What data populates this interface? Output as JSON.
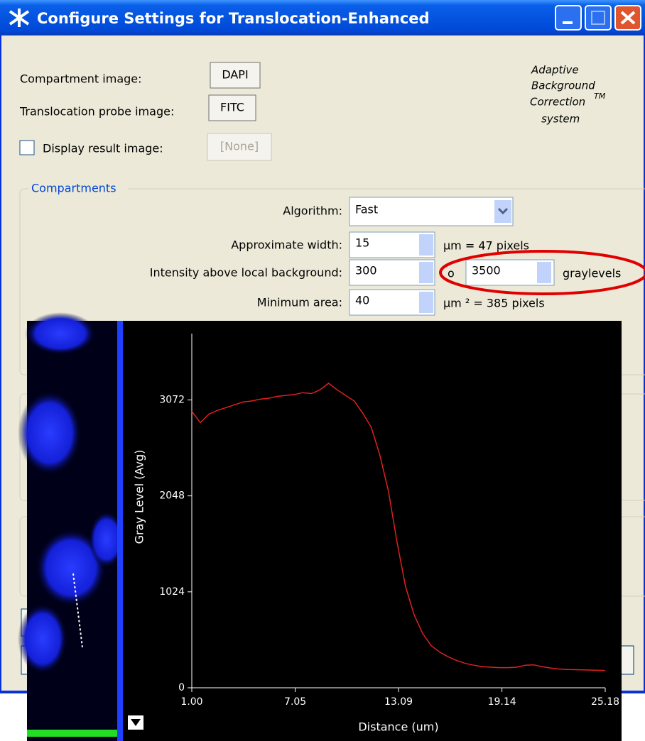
{
  "window": {
    "title": "Configure Settings for Translocation-Enhanced"
  },
  "images": {
    "compartment_label": "Compartment image:",
    "compartment_value": "DAPI",
    "probe_label": "Translocation probe image:",
    "probe_value": "FITC",
    "display_label": "Display result image:",
    "display_value": "[None]"
  },
  "branding": {
    "line1": "Adaptive",
    "line2": "Background",
    "line3": "Correction",
    "trademark": "TM",
    "line4": "system"
  },
  "compartments": {
    "legend": "Compartments",
    "algorithm_label": "Algorithm:",
    "algorithm_value": "Fast",
    "width_label": "Approximate width:",
    "width_value": "15",
    "width_unit": "µm = 47 pixels",
    "intensity_label": "Intensity above local background:",
    "intensity_low": "300",
    "intensity_to": "o",
    "intensity_high": "3500",
    "intensity_unit": "graylevels",
    "area_label": "Minimum area:",
    "area_value": "40",
    "area_unit": "µm ² = 385 pixels"
  },
  "chart_data": {
    "type": "line",
    "x_label": "Distance (um)",
    "y_label": "Gray Level (Avg)",
    "x": [
      1,
      1.5,
      2,
      2.5,
      3,
      3.5,
      4,
      4.5,
      5,
      5.5,
      6,
      6.5,
      7,
      7.5,
      8,
      8.5,
      9,
      9.5,
      10,
      10.5,
      11,
      11.5,
      12,
      12.5,
      13,
      13.5,
      14,
      14.5,
      15,
      15.5,
      16,
      16.5,
      17,
      17.5,
      18,
      18.5,
      19,
      19.5,
      20,
      20.5,
      21,
      21.5,
      22,
      22.5,
      23,
      24,
      25.18
    ],
    "values": [
      2950,
      2830,
      2920,
      2960,
      2990,
      3020,
      3050,
      3060,
      3080,
      3090,
      3110,
      3120,
      3130,
      3150,
      3140,
      3180,
      3250,
      3180,
      3120,
      3060,
      2930,
      2780,
      2480,
      2100,
      1560,
      1080,
      780,
      580,
      450,
      380,
      330,
      290,
      260,
      240,
      225,
      220,
      215,
      215,
      220,
      240,
      245,
      225,
      210,
      200,
      195,
      190,
      185
    ],
    "color": "#e02020",
    "xlim": [
      1,
      25.18
    ],
    "ylim": [
      0,
      3780
    ],
    "xticks": [
      {
        "value": 1,
        "label": "1.00"
      },
      7.05,
      13.09,
      19.14,
      25.18
    ],
    "yticks": [
      0,
      1024,
      2048,
      3072
    ]
  }
}
